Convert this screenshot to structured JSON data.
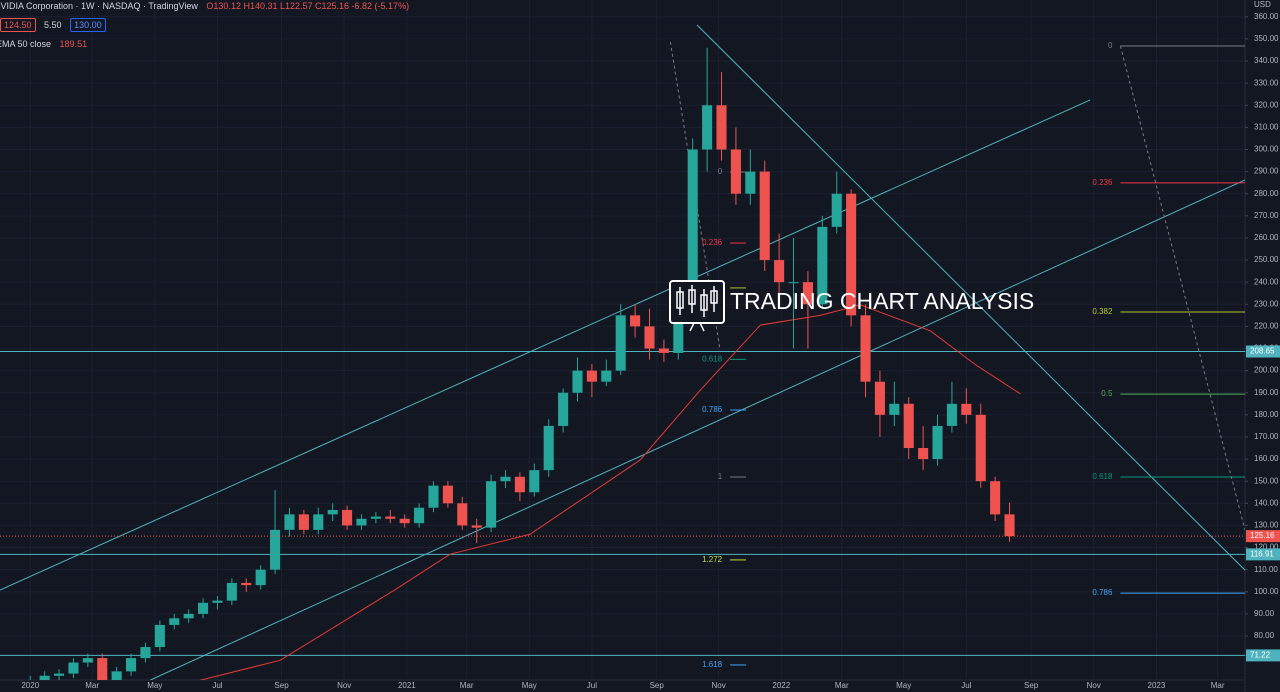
{
  "header": {
    "symbol": "NVIDIA Corporation · 1W · NASDAQ · TradingView",
    "ohlc": "O130.12 H140.31 L122.57 C125.16 -6.82 (-5.17%)",
    "bid": "124.50",
    "spread": "5.50",
    "ask": "130.00",
    "indicator": "EMA 50 close",
    "indicator_value": "189.51"
  },
  "watermark": "TRADING CHART ANALYSIS",
  "chart_data": {
    "type": "candlestick",
    "currency": "USD",
    "up_color": "#26a69a",
    "down_color": "#ef5350",
    "x": [
      0,
      2,
      4,
      6,
      8,
      10,
      12,
      14,
      16,
      18,
      20,
      22,
      24,
      26,
      28,
      30,
      32,
      34,
      36,
      38,
      40,
      42,
      44,
      46,
      48,
      50,
      52,
      54,
      56,
      58,
      60,
      62,
      64,
      66,
      68,
      70,
      72,
      74,
      76,
      78,
      80,
      82,
      84,
      86,
      88,
      90,
      92,
      94,
      96,
      98,
      100,
      102,
      104,
      106,
      108,
      110,
      112,
      114,
      116,
      118,
      120,
      122,
      124,
      126,
      128,
      130,
      132,
      134,
      136
    ],
    "open": [
      59,
      60,
      62,
      63,
      68,
      70,
      60,
      64,
      70,
      75,
      85,
      88,
      90,
      95,
      96,
      104,
      103,
      110,
      128,
      135,
      128,
      135,
      137,
      130,
      133,
      134,
      133,
      131,
      138,
      148,
      140,
      130,
      129,
      150,
      152,
      145,
      155,
      175,
      190,
      200,
      195,
      200,
      225,
      220,
      210,
      208,
      228,
      300,
      320,
      300,
      280,
      290,
      250,
      240,
      240,
      230,
      265,
      280,
      225,
      195,
      180,
      185,
      165,
      160,
      175,
      185,
      180,
      150,
      135
    ],
    "high": [
      62,
      64,
      65,
      70,
      72,
      72,
      66,
      72,
      77,
      87,
      90,
      92,
      97,
      98,
      106,
      106,
      112,
      146,
      138,
      137,
      138,
      140,
      139,
      135,
      136,
      137,
      135,
      140,
      150,
      150,
      143,
      133,
      153,
      155,
      154,
      158,
      178,
      192,
      206,
      203,
      205,
      230,
      230,
      228,
      214,
      232,
      305,
      346,
      335,
      310,
      300,
      295,
      262,
      260,
      245,
      270,
      290,
      282,
      230,
      200,
      195,
      188,
      175,
      180,
      195,
      192,
      185,
      152,
      140.31
    ],
    "low": [
      57,
      58,
      60,
      61,
      66,
      50,
      58,
      62,
      68,
      73,
      83,
      86,
      88,
      92,
      94,
      100,
      101,
      108,
      125,
      126,
      126,
      132,
      128,
      128,
      131,
      131,
      129,
      129,
      136,
      138,
      128,
      122,
      127,
      147,
      141,
      143,
      152,
      172,
      186,
      188,
      193,
      198,
      215,
      205,
      204,
      205,
      225,
      290,
      295,
      275,
      275,
      245,
      235,
      210,
      210,
      228,
      262,
      220,
      188,
      170,
      175,
      160,
      155,
      157,
      172,
      176,
      147,
      132,
      122.57
    ],
    "close": [
      60,
      62,
      63,
      68,
      70,
      60,
      64,
      70,
      75,
      85,
      88,
      90,
      95,
      96,
      104,
      103,
      110,
      128,
      135,
      128,
      135,
      137,
      130,
      133,
      134,
      133,
      131,
      138,
      148,
      140,
      130,
      129,
      150,
      152,
      145,
      155,
      175,
      190,
      200,
      195,
      200,
      225,
      220,
      210,
      208,
      228,
      300,
      320,
      300,
      280,
      290,
      250,
      240,
      240,
      230,
      265,
      280,
      225,
      195,
      180,
      185,
      165,
      160,
      175,
      185,
      180,
      150,
      135,
      125.16
    ],
    "xlim": [
      -4.2,
      168.7
    ],
    "xticks": [
      {
        "value": 0,
        "label": "2020"
      },
      {
        "value": 8.6,
        "label": "Mar"
      },
      {
        "value": 17.3,
        "label": "May"
      },
      {
        "value": 26,
        "label": "Jul"
      },
      {
        "value": 34.9,
        "label": "Sep"
      },
      {
        "value": 43.6,
        "label": "Nov"
      },
      {
        "value": 52.3,
        "label": "2021"
      },
      {
        "value": 60.6,
        "label": "Mar"
      },
      {
        "value": 69.3,
        "label": "May"
      },
      {
        "value": 78,
        "label": "Jul"
      },
      {
        "value": 87,
        "label": "Sep"
      },
      {
        "value": 95.6,
        "label": "Nov"
      },
      {
        "value": 104.3,
        "label": "2022"
      },
      {
        "value": 112.7,
        "label": "Mar"
      },
      {
        "value": 121.3,
        "label": "May"
      },
      {
        "value": 130,
        "label": "Jul"
      },
      {
        "value": 139,
        "label": "Sep"
      },
      {
        "value": 147.7,
        "label": "Nov"
      },
      {
        "value": 156.4,
        "label": "2023"
      },
      {
        "value": 164.9,
        "label": "Mar"
      }
    ],
    "ylim": [
      60.1,
      367.6
    ],
    "yticks": [
      {
        "value": 80,
        "label": "80.00"
      },
      {
        "value": 90,
        "label": "90.00"
      },
      {
        "value": 100,
        "label": "100.00"
      },
      {
        "value": 110,
        "label": "110.00"
      },
      {
        "value": 120,
        "label": "120.00"
      },
      {
        "value": 130,
        "label": "130.00"
      },
      {
        "value": 140,
        "label": "140.00"
      },
      {
        "value": 150,
        "label": "150.00"
      },
      {
        "value": 160,
        "label": "160.00"
      },
      {
        "value": 170,
        "label": "170.00"
      },
      {
        "value": 180,
        "label": "180.00"
      },
      {
        "value": 190,
        "label": "190.00"
      },
      {
        "value": 200,
        "label": "200.00"
      },
      {
        "value": 210,
        "label": "210.00"
      },
      {
        "value": 220,
        "label": "220.00"
      },
      {
        "value": 230,
        "label": "230.00"
      },
      {
        "value": 240,
        "label": "240.00"
      },
      {
        "value": 250,
        "label": "250.00"
      },
      {
        "value": 260,
        "label": "260.00"
      },
      {
        "value": 270,
        "label": "270.00"
      },
      {
        "value": 280,
        "label": "280.00"
      },
      {
        "value": 290,
        "label": "290.00"
      },
      {
        "value": 300,
        "label": "300.00"
      },
      {
        "value": 310,
        "label": "310.00"
      },
      {
        "value": 320,
        "label": "320.00"
      },
      {
        "value": 330,
        "label": "330.00"
      },
      {
        "value": 340,
        "label": "340.00"
      },
      {
        "value": 350,
        "label": "350.00"
      },
      {
        "value": 360,
        "label": "360.00"
      }
    ],
    "ema": {
      "color": "#e53935",
      "x": [
        23.6,
        34.7,
        50.7,
        58.3,
        69.4,
        84.7,
        93,
        101.4,
        109.7,
        115.3,
        125,
        131.3,
        137.5
      ],
      "values": [
        60,
        69,
        101,
        117,
        126,
        159.6,
        191,
        220.6,
        225,
        229.7,
        218,
        202.6,
        189.5
      ]
    },
    "trendlines": [
      {
        "x": [
          -4.2,
          147.2
        ],
        "y": [
          100.8,
          322.4
        ],
        "color": "#4fb3bf",
        "dashed": false
      },
      {
        "x": [
          16.7,
          168.7
        ],
        "y": [
          60.1,
          286.2
        ],
        "color": "#4fb3bf",
        "dashed": false
      },
      {
        "x": [
          92.6,
          168.7
        ],
        "y": [
          356.3,
          109.8
        ],
        "color": "#4fb3bf",
        "dashed": false
      },
      {
        "x": [
          151.4,
          168.7
        ],
        "y": [
          346.8,
          127.9
        ],
        "color": "#787b86",
        "dashed": true
      },
      {
        "x": [
          88.9,
          95.8
        ],
        "y": [
          348.6,
          209.3
        ],
        "color": "#787b86",
        "dashed": true
      }
    ],
    "hlines": [
      {
        "value": 208.65,
        "color": "#4fb3bf"
      },
      {
        "value": 116.91,
        "color": "#4fb3bf"
      },
      {
        "value": 71.22,
        "color": "#4fb3bf"
      }
    ],
    "fib_sets": [
      {
        "x": [
          151.4,
          168.7
        ],
        "levels": [
          {
            "value": 346.8,
            "label": "0",
            "color": "#787b86"
          },
          {
            "value": 284.9,
            "label": "0.236",
            "color": "#f23645"
          },
          {
            "value": 226.5,
            "label": "0.382",
            "color": "#b5c42a"
          },
          {
            "value": 189.4,
            "label": "0.5",
            "color": "#4caf50"
          },
          {
            "value": 151.9,
            "label": "0.618",
            "color": "#089981"
          },
          {
            "value": 99.4,
            "label": "0.786",
            "color": "#42a5f5"
          }
        ]
      },
      {
        "x": [
          97.2,
          99.4
        ],
        "levels": [
          {
            "value": 289.8,
            "label": "0",
            "color": "#787b86"
          },
          {
            "value": 257.7,
            "label": "0.236",
            "color": "#f23645"
          },
          {
            "value": 237.4,
            "label": "0.382",
            "color": "#b5c42a"
          },
          {
            "value": 205.1,
            "label": "0.618",
            "color": "#089981"
          },
          {
            "value": 182.2,
            "label": "0.786",
            "color": "#42a5f5"
          },
          {
            "value": 151.9,
            "label": "1",
            "color": "#787b86"
          },
          {
            "value": 114.4,
            "label": "1.272",
            "color": "#cddc39"
          },
          {
            "value": 66.9,
            "label": "1.618",
            "color": "#42a5f5"
          }
        ]
      }
    ]
  }
}
